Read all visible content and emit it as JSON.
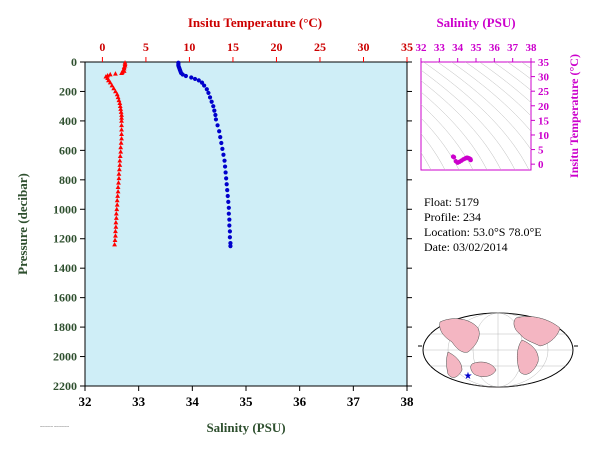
{
  "figure": {
    "tiny_note": "~~~~~~ ~~~~~~~"
  },
  "float_info": {
    "float_line": "Float:  5179",
    "profile_line": "Profile:  234",
    "location_line": "Location:  53.0°S  78.0°E",
    "date_line": "Date:  03/02/2014"
  },
  "colors": {
    "plot_background": "#cfeef7",
    "temperature": "#ff0000",
    "salinity": "#0000cc",
    "pressure_axis": "#2e4f2e",
    "ts_axis": "#cc00cc",
    "land": "#f4b6c2",
    "ocean": "#ffffff"
  },
  "chart_data": [
    {
      "type": "scatter",
      "ylabel": "Pressure (decibar)",
      "top_xlabel": "Insitu Temperature (°C)",
      "bottom_xlabel": "Salinity (PSU)",
      "ylim": [
        2200,
        0
      ],
      "temperature_xlim": [
        -2,
        35
      ],
      "salinity_xlim": [
        32,
        38
      ],
      "y_ticks": [
        0,
        200,
        400,
        600,
        800,
        1000,
        1200,
        1400,
        1600,
        1800,
        2000,
        2200
      ],
      "temperature_ticks": [
        0,
        5,
        10,
        15,
        20,
        25,
        30,
        35
      ],
      "salinity_ticks": [
        32,
        33,
        34,
        35,
        36,
        37,
        38
      ],
      "series": [
        {
          "marker": "triangle",
          "color": "#ff0000",
          "points": [
            [
              2.6,
              5
            ],
            [
              2.6,
              15
            ],
            [
              2.6,
              25
            ],
            [
              2.5,
              35
            ],
            [
              2.5,
              45
            ],
            [
              2.4,
              55
            ],
            [
              2.5,
              62
            ],
            [
              2.3,
              70
            ],
            [
              2.2,
              76
            ],
            [
              1.5,
              80
            ],
            [
              0.9,
              85
            ],
            [
              0.6,
              92
            ],
            [
              0.4,
              100
            ],
            [
              0.6,
              110
            ],
            [
              0.7,
              125
            ],
            [
              0.9,
              140
            ],
            [
              1.1,
              160
            ],
            [
              1.3,
              180
            ],
            [
              1.5,
              200
            ],
            [
              1.7,
              220
            ],
            [
              1.8,
              240
            ],
            [
              1.9,
              260
            ],
            [
              2.0,
              280
            ],
            [
              2.05,
              300
            ],
            [
              2.1,
              320
            ],
            [
              2.15,
              340
            ],
            [
              2.2,
              360
            ],
            [
              2.2,
              380
            ],
            [
              2.2,
              400
            ],
            [
              2.2,
              430
            ],
            [
              2.2,
              460
            ],
            [
              2.2,
              490
            ],
            [
              2.2,
              520
            ],
            [
              2.15,
              550
            ],
            [
              2.1,
              580
            ],
            [
              2.1,
              610
            ],
            [
              2.05,
              640
            ],
            [
              2.0,
              670
            ],
            [
              2.0,
              700
            ],
            [
              1.95,
              730
            ],
            [
              1.9,
              760
            ],
            [
              1.9,
              790
            ],
            [
              1.85,
              820
            ],
            [
              1.8,
              850
            ],
            [
              1.8,
              880
            ],
            [
              1.75,
              910
            ],
            [
              1.7,
              940
            ],
            [
              1.7,
              970
            ],
            [
              1.65,
              1000
            ],
            [
              1.6,
              1030
            ],
            [
              1.6,
              1060
            ],
            [
              1.55,
              1090
            ],
            [
              1.55,
              1120
            ],
            [
              1.5,
              1150
            ],
            [
              1.5,
              1180
            ],
            [
              1.45,
              1210
            ],
            [
              1.4,
              1240
            ]
          ]
        },
        {
          "marker": "circle",
          "color": "#0000cc",
          "points": [
            [
              33.74,
              5
            ],
            [
              33.74,
              15
            ],
            [
              33.74,
              25
            ],
            [
              33.75,
              35
            ],
            [
              33.76,
              45
            ],
            [
              33.77,
              55
            ],
            [
              33.78,
              65
            ],
            [
              33.79,
              75
            ],
            [
              33.82,
              85
            ],
            [
              33.88,
              95
            ],
            [
              33.98,
              105
            ],
            [
              34.05,
              115
            ],
            [
              34.12,
              125
            ],
            [
              34.18,
              140
            ],
            [
              34.22,
              160
            ],
            [
              34.27,
              185
            ],
            [
              34.3,
              210
            ],
            [
              34.33,
              240
            ],
            [
              34.36,
              270
            ],
            [
              34.39,
              300
            ],
            [
              34.41,
              330
            ],
            [
              34.43,
              360
            ],
            [
              34.44,
              390
            ],
            [
              34.47,
              430
            ],
            [
              34.5,
              470
            ],
            [
              34.52,
              510
            ],
            [
              34.54,
              550
            ],
            [
              34.56,
              590
            ],
            [
              34.58,
              630
            ],
            [
              34.6,
              670
            ],
            [
              34.61,
              710
            ],
            [
              34.62,
              750
            ],
            [
              34.63,
              790
            ],
            [
              34.64,
              830
            ],
            [
              34.65,
              870
            ],
            [
              34.66,
              910
            ],
            [
              34.67,
              950
            ],
            [
              34.68,
              990
            ],
            [
              34.68,
              1030
            ],
            [
              34.69,
              1070
            ],
            [
              34.69,
              1110
            ],
            [
              34.7,
              1150
            ],
            [
              34.7,
              1190
            ],
            [
              34.71,
              1230
            ],
            [
              34.71,
              1250
            ]
          ]
        }
      ]
    },
    {
      "type": "scatter",
      "xlabel": "Salinity (PSU)",
      "ylabel": "Insitu Temperature (°C)",
      "xlim": [
        32,
        38
      ],
      "ylim": [
        -2,
        35
      ],
      "x_ticks": [
        32,
        33,
        34,
        35,
        36,
        37,
        38
      ],
      "y_ticks": [
        0,
        5,
        10,
        15,
        20,
        25,
        30,
        35
      ],
      "series": [
        {
          "color": "#cc00cc",
          "points": [
            [
              33.75,
              2.6
            ],
            [
              33.8,
              2.4
            ],
            [
              33.9,
              1.0
            ],
            [
              34.0,
              0.5
            ],
            [
              34.1,
              0.8
            ],
            [
              34.2,
              1.2
            ],
            [
              34.3,
              1.6
            ],
            [
              34.4,
              1.9
            ],
            [
              34.45,
              2.1
            ],
            [
              34.5,
              2.2
            ],
            [
              34.55,
              2.15
            ],
            [
              34.6,
              2.05
            ],
            [
              34.65,
              1.9
            ],
            [
              34.7,
              1.7
            ],
            [
              34.71,
              1.4
            ]
          ]
        }
      ]
    }
  ]
}
